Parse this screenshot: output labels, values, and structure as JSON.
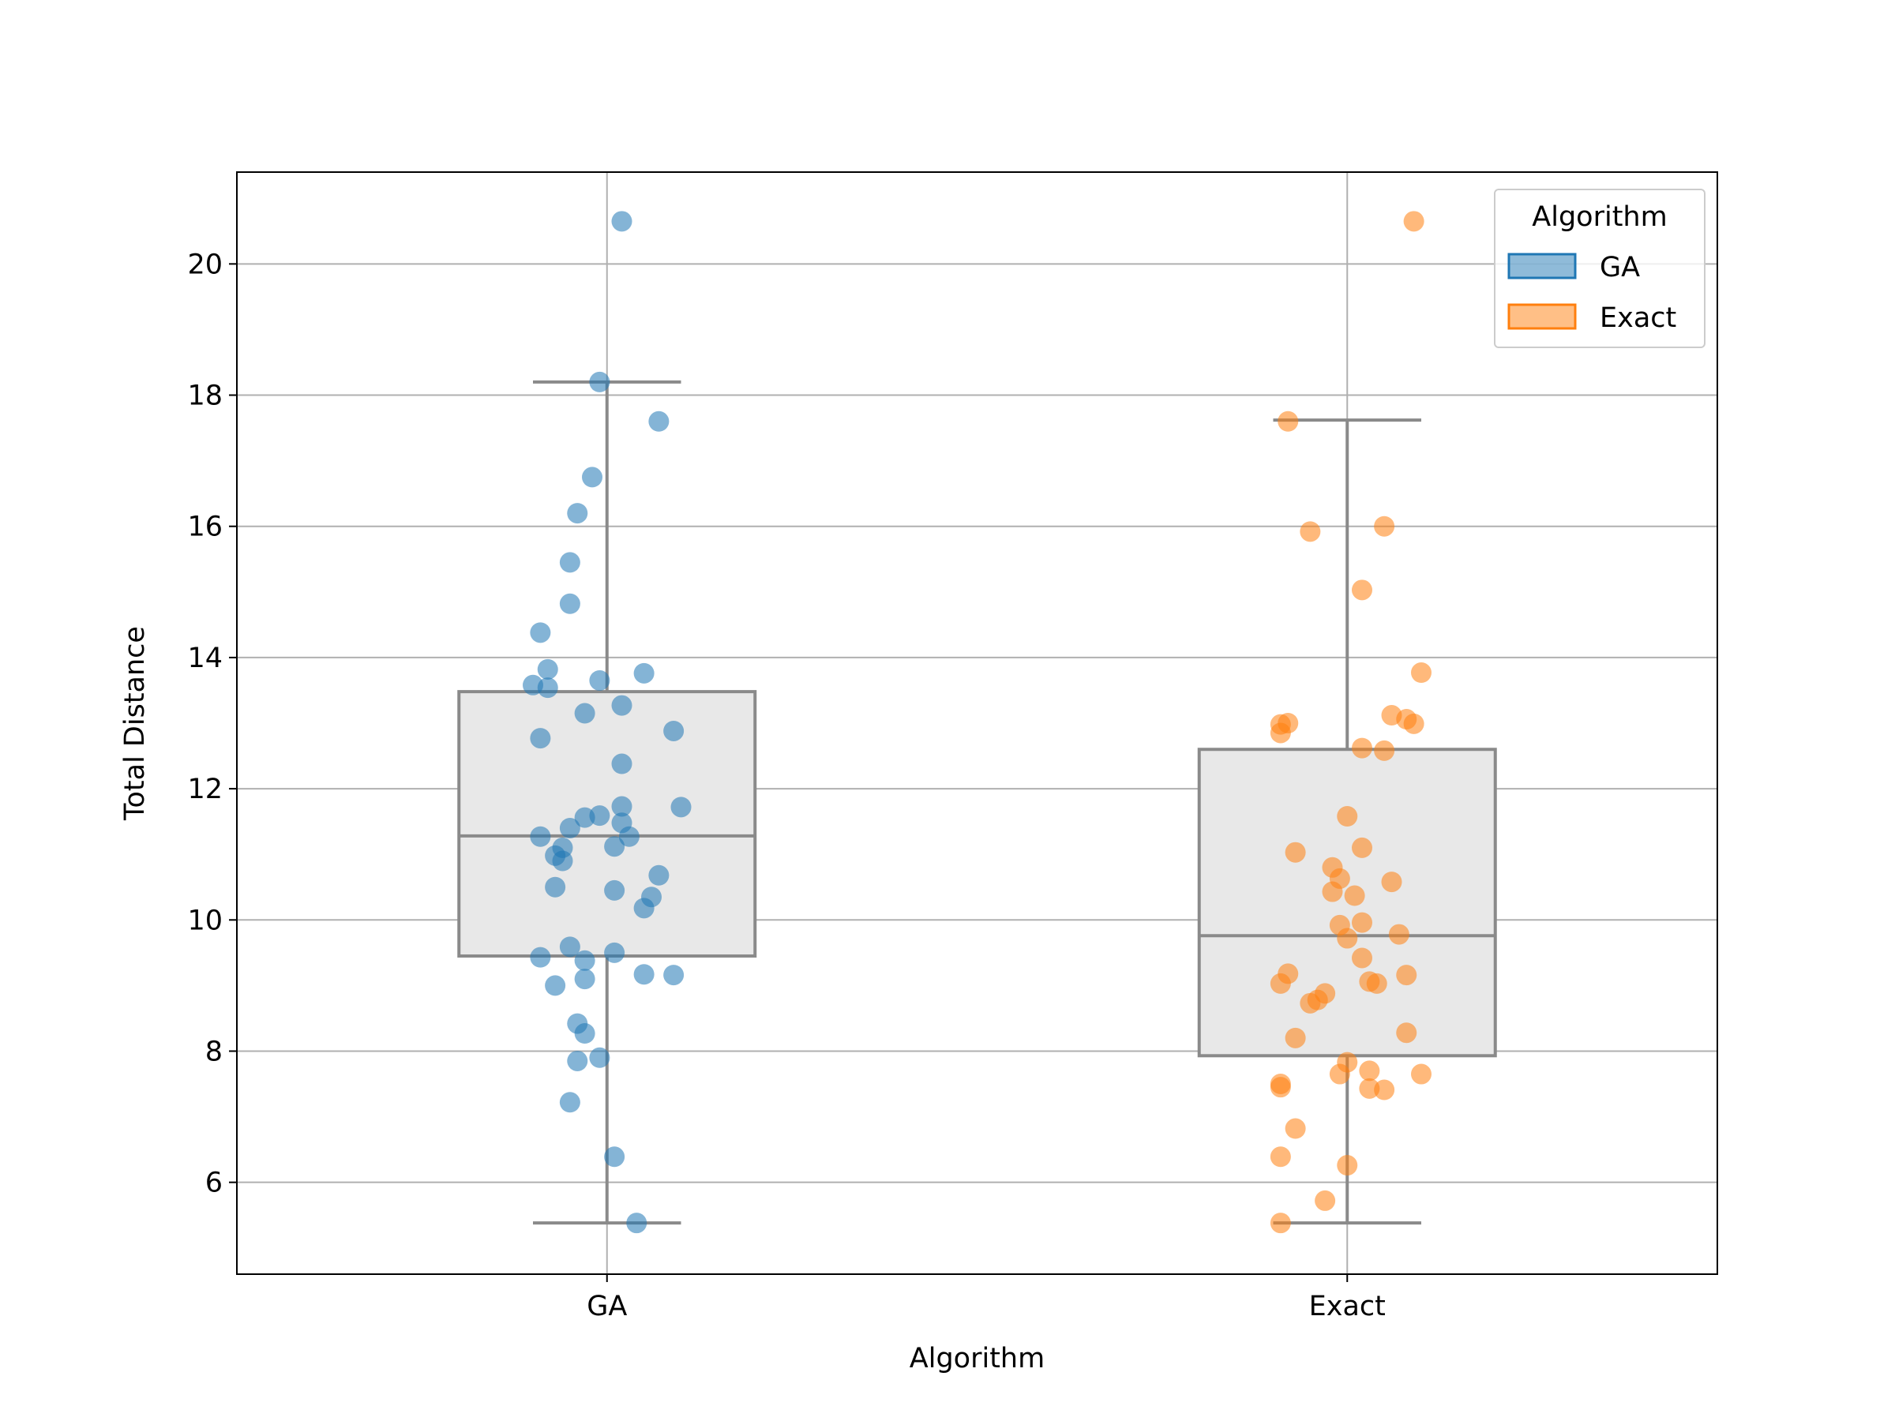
{
  "chart_data": {
    "type": "box",
    "xlabel": "Algorithm",
    "ylabel": "Total Distance",
    "categories": [
      "GA",
      "Exact"
    ],
    "ylim": [
      4.6,
      21.4
    ],
    "yticks": [
      6,
      8,
      10,
      12,
      14,
      16,
      18,
      20
    ],
    "grid": true,
    "legend": {
      "title": "Algorithm",
      "placement": "top-right",
      "entries": [
        "GA",
        "Exact"
      ]
    },
    "colors": {
      "GA": "#1f77b4",
      "Exact": "#ff7f0e",
      "box_fill": "#e8e8e8",
      "box_line": "#8a8a8a",
      "grid": "#b0b0b0"
    },
    "boxes": [
      {
        "name": "GA",
        "whisker_low": 5.38,
        "q1": 9.45,
        "median": 11.28,
        "q3": 13.48,
        "whisker_high": 18.2
      },
      {
        "name": "Exact",
        "whisker_low": 5.38,
        "q1": 7.93,
        "median": 9.76,
        "q3": 12.6,
        "whisker_high": 17.62
      }
    ],
    "series": [
      {
        "name": "GA",
        "points": [
          {
            "x": 0.02,
            "y": 20.65
          },
          {
            "x": -0.01,
            "y": 18.2
          },
          {
            "x": 0.07,
            "y": 17.6
          },
          {
            "x": -0.02,
            "y": 16.75
          },
          {
            "x": -0.04,
            "y": 16.2
          },
          {
            "x": -0.05,
            "y": 15.45
          },
          {
            "x": -0.05,
            "y": 14.82
          },
          {
            "x": -0.09,
            "y": 14.38
          },
          {
            "x": -0.08,
            "y": 13.82
          },
          {
            "x": 0.05,
            "y": 13.76
          },
          {
            "x": -0.01,
            "y": 13.65
          },
          {
            "x": -0.1,
            "y": 13.58
          },
          {
            "x": -0.08,
            "y": 13.54
          },
          {
            "x": 0.02,
            "y": 13.27
          },
          {
            "x": -0.03,
            "y": 13.15
          },
          {
            "x": 0.09,
            "y": 12.88
          },
          {
            "x": -0.09,
            "y": 12.77
          },
          {
            "x": 0.02,
            "y": 12.38
          },
          {
            "x": 0.02,
            "y": 11.73
          },
          {
            "x": 0.1,
            "y": 11.72
          },
          {
            "x": -0.01,
            "y": 11.59
          },
          {
            "x": -0.03,
            "y": 11.56
          },
          {
            "x": 0.02,
            "y": 11.48
          },
          {
            "x": -0.05,
            "y": 11.4
          },
          {
            "x": 0.03,
            "y": 11.27
          },
          {
            "x": -0.09,
            "y": 11.27
          },
          {
            "x": 0.01,
            "y": 11.12
          },
          {
            "x": -0.06,
            "y": 11.1
          },
          {
            "x": -0.07,
            "y": 10.98
          },
          {
            "x": -0.06,
            "y": 10.9
          },
          {
            "x": 0.07,
            "y": 10.68
          },
          {
            "x": -0.07,
            "y": 10.5
          },
          {
            "x": 0.01,
            "y": 10.45
          },
          {
            "x": 0.06,
            "y": 10.35
          },
          {
            "x": 0.05,
            "y": 10.18
          },
          {
            "x": -0.05,
            "y": 9.59
          },
          {
            "x": 0.01,
            "y": 9.5
          },
          {
            "x": -0.09,
            "y": 9.43
          },
          {
            "x": -0.03,
            "y": 9.38
          },
          {
            "x": 0.05,
            "y": 9.17
          },
          {
            "x": 0.09,
            "y": 9.16
          },
          {
            "x": -0.03,
            "y": 9.1
          },
          {
            "x": -0.07,
            "y": 9.0
          },
          {
            "x": -0.04,
            "y": 8.42
          },
          {
            "x": -0.03,
            "y": 8.27
          },
          {
            "x": -0.01,
            "y": 7.9
          },
          {
            "x": -0.04,
            "y": 7.85
          },
          {
            "x": -0.05,
            "y": 7.22
          },
          {
            "x": 0.01,
            "y": 6.39
          },
          {
            "x": 0.04,
            "y": 5.38
          }
        ]
      },
      {
        "name": "Exact",
        "points": [
          {
            "x": 0.09,
            "y": 20.65
          },
          {
            "x": -0.08,
            "y": 17.6
          },
          {
            "x": 0.05,
            "y": 16.0
          },
          {
            "x": -0.05,
            "y": 15.92
          },
          {
            "x": 0.02,
            "y": 15.03
          },
          {
            "x": 0.1,
            "y": 13.77
          },
          {
            "x": 0.06,
            "y": 13.12
          },
          {
            "x": 0.08,
            "y": 13.06
          },
          {
            "x": -0.08,
            "y": 13.0
          },
          {
            "x": -0.09,
            "y": 12.98
          },
          {
            "x": 0.09,
            "y": 12.99
          },
          {
            "x": -0.09,
            "y": 12.85
          },
          {
            "x": 0.02,
            "y": 12.62
          },
          {
            "x": 0.05,
            "y": 12.58
          },
          {
            "x": 0.0,
            "y": 11.58
          },
          {
            "x": 0.02,
            "y": 11.1
          },
          {
            "x": -0.07,
            "y": 11.03
          },
          {
            "x": -0.02,
            "y": 10.8
          },
          {
            "x": -0.01,
            "y": 10.63
          },
          {
            "x": 0.06,
            "y": 10.58
          },
          {
            "x": -0.02,
            "y": 10.43
          },
          {
            "x": 0.01,
            "y": 10.37
          },
          {
            "x": 0.02,
            "y": 9.96
          },
          {
            "x": -0.01,
            "y": 9.92
          },
          {
            "x": 0.07,
            "y": 9.78
          },
          {
            "x": 0.0,
            "y": 9.72
          },
          {
            "x": 0.02,
            "y": 9.42
          },
          {
            "x": -0.08,
            "y": 9.18
          },
          {
            "x": 0.08,
            "y": 9.16
          },
          {
            "x": 0.03,
            "y": 9.06
          },
          {
            "x": 0.04,
            "y": 9.03
          },
          {
            "x": -0.09,
            "y": 9.03
          },
          {
            "x": -0.03,
            "y": 8.88
          },
          {
            "x": -0.04,
            "y": 8.78
          },
          {
            "x": -0.05,
            "y": 8.73
          },
          {
            "x": 0.08,
            "y": 8.28
          },
          {
            "x": -0.07,
            "y": 8.2
          },
          {
            "x": 0.0,
            "y": 7.83
          },
          {
            "x": 0.03,
            "y": 7.7
          },
          {
            "x": -0.01,
            "y": 7.65
          },
          {
            "x": 0.1,
            "y": 7.65
          },
          {
            "x": -0.09,
            "y": 7.5
          },
          {
            "x": -0.09,
            "y": 7.45
          },
          {
            "x": 0.03,
            "y": 7.43
          },
          {
            "x": 0.05,
            "y": 7.41
          },
          {
            "x": -0.07,
            "y": 6.82
          },
          {
            "x": -0.09,
            "y": 6.39
          },
          {
            "x": 0.0,
            "y": 6.26
          },
          {
            "x": -0.03,
            "y": 5.72
          },
          {
            "x": -0.09,
            "y": 5.38
          }
        ]
      }
    ]
  }
}
